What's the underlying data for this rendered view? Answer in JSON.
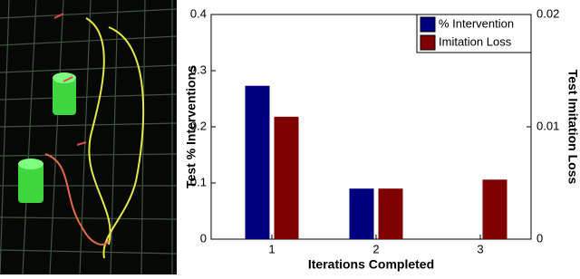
{
  "chart_data": {
    "type": "bar",
    "categories": [
      "1",
      "2",
      "3"
    ],
    "x_label": "Iterations Completed",
    "y_label": "Test % Interventions",
    "y2_label": "Test Imitation Loss",
    "ylim": [
      0,
      0.4
    ],
    "yticks": [
      0,
      0.1,
      0.2,
      0.3,
      0.4
    ],
    "y2lim": [
      0,
      0.02
    ],
    "y2ticks": [
      0,
      0.01,
      0.02
    ],
    "legend": "upper right",
    "series": [
      {
        "name": "% Intervention",
        "color": "#00007f",
        "values": [
          0.273,
          0.09,
          0
        ]
      },
      {
        "name": "Imitation Loss",
        "color": "#7f0000",
        "values": [
          0.0109,
          0.0045,
          0.0053
        ],
        "axis": "y2"
      }
    ]
  }
}
